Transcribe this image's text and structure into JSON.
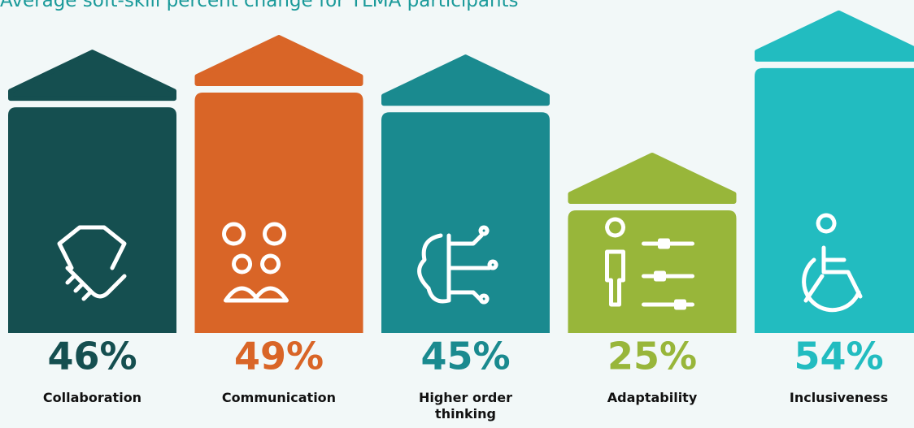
{
  "chart_data": {
    "type": "bar",
    "title": "Average soft-skill percent change for YLMA participants",
    "categories": [
      "Collaboration",
      "Communication",
      "Higher order thinking",
      "Adaptability",
      "Inclusiveness"
    ],
    "values": [
      46,
      49,
      45,
      25,
      54
    ],
    "value_labels": [
      "46%",
      "49%",
      "45%",
      "25%",
      "54%"
    ],
    "colors": [
      "#154f50",
      "#d96527",
      "#1a8a8f",
      "#98b63a",
      "#22bcc0"
    ]
  }
}
